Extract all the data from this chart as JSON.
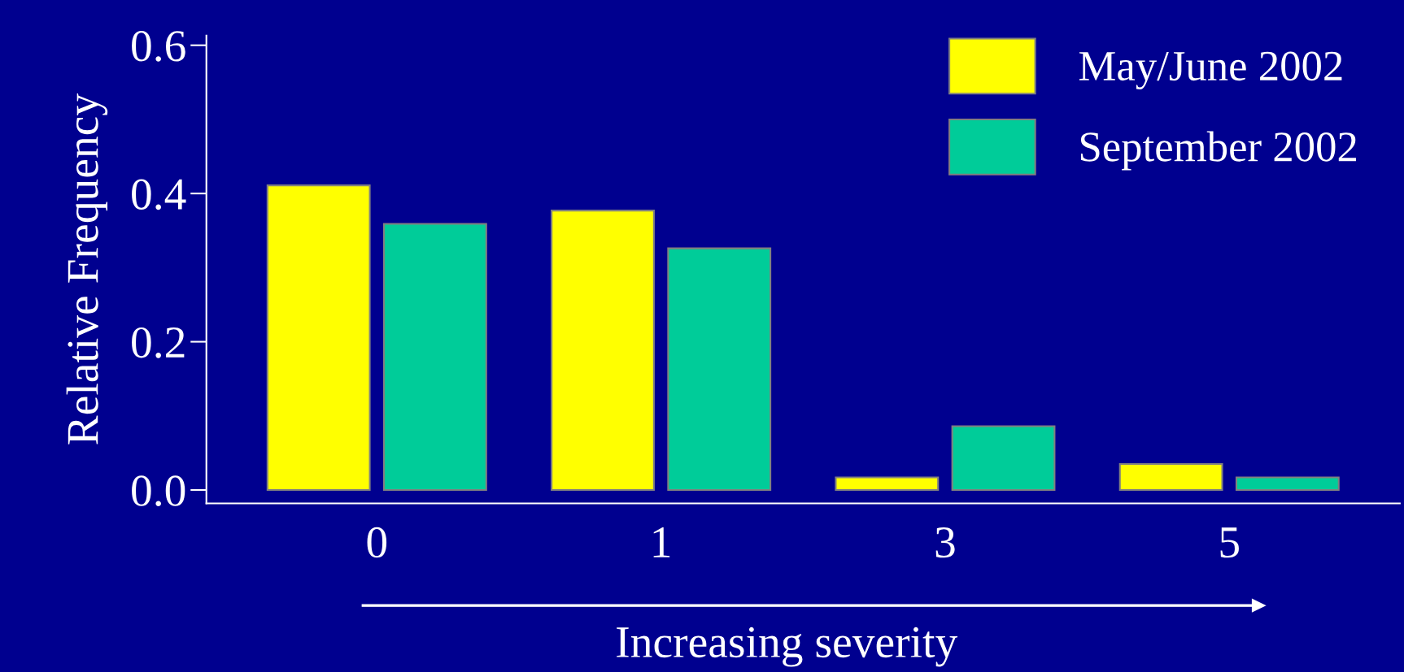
{
  "chart_data": {
    "type": "bar",
    "xlabel": "Increasing severity",
    "ylabel": "Relative Frequency",
    "categories": [
      "0",
      "1",
      "3",
      "5"
    ],
    "series": [
      {
        "name": "May/June 2002",
        "color": "#ffff00",
        "values": [
          0.411,
          0.377,
          0.017,
          0.035
        ]
      },
      {
        "name": "September 2002",
        "color": "#00cc99",
        "values": [
          0.359,
          0.326,
          0.086,
          0.017
        ]
      }
    ],
    "ylim": [
      -0.018,
      0.613
    ],
    "yticks": [
      {
        "value": 0,
        "label": "0.0"
      },
      {
        "value": 0.2,
        "label": "0.2"
      },
      {
        "value": 0.4,
        "label": "0.4"
      },
      {
        "value": 0.6,
        "label": "0.6"
      }
    ],
    "grid": false,
    "legend": "top right"
  }
}
